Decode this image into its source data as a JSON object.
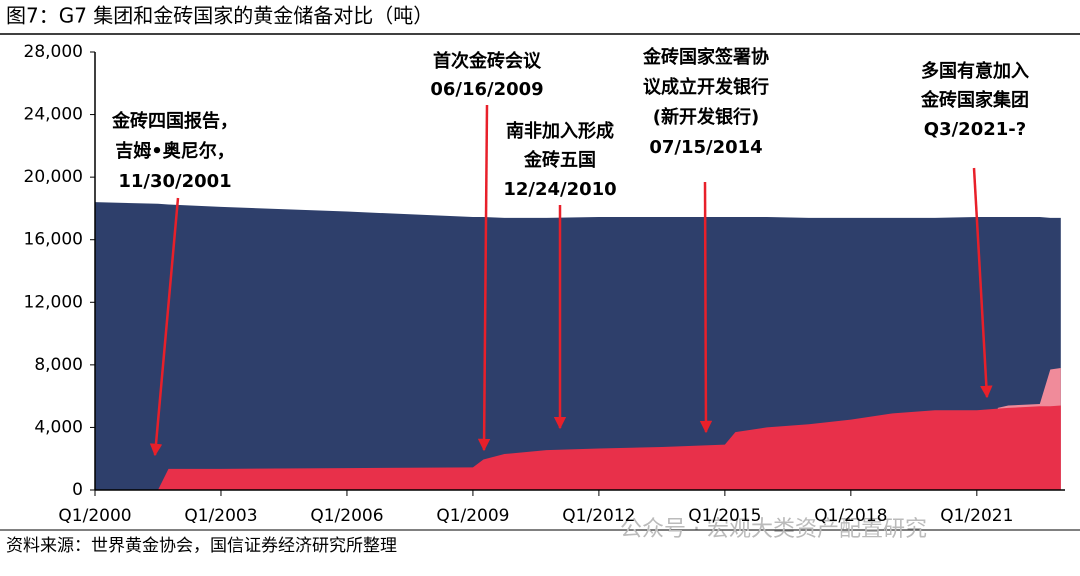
{
  "chart_data": {
    "type": "area",
    "title": "图7：G7 集团和金砖国家的黄金储备对比（吨）",
    "source": "资料来源：世界黄金协会，国信证券经济研究所整理",
    "watermark": "公众号 · 宏观大类资产配置研究",
    "x": [
      2000,
      2001.5,
      2001.75,
      2003,
      2006,
      2009,
      2009.25,
      2009.75,
      2010.75,
      2012,
      2013.5,
      2015,
      2015.25,
      2016,
      2017,
      2018,
      2019,
      2020,
      2021,
      2021.5,
      2021.75,
      2022.5,
      2022.75,
      2023
    ],
    "series": [
      {
        "color": "#2e3f6b",
        "values": [
          18400,
          18300,
          18250,
          18100,
          17800,
          17450,
          17450,
          17400,
          17400,
          17450,
          17450,
          17450,
          17450,
          17450,
          17400,
          17400,
          17400,
          17400,
          17450,
          17450,
          17450,
          17450,
          17400,
          17400
        ]
      },
      {
        "color": "#f08b9a",
        "values": [
          null,
          null,
          null,
          null,
          null,
          null,
          null,
          null,
          null,
          null,
          null,
          null,
          null,
          null,
          null,
          null,
          null,
          null,
          null,
          5250,
          5400,
          5500,
          7700,
          7800
        ]
      },
      {
        "color": "#e8304a",
        "values": [
          0,
          0,
          1350,
          1350,
          1400,
          1450,
          1950,
          2300,
          2550,
          2650,
          2750,
          2900,
          3700,
          4000,
          4200,
          4500,
          4900,
          5100,
          5100,
          5200,
          5250,
          5350,
          5350,
          5400
        ]
      }
    ],
    "xlim": [
      2000,
      2023.1
    ],
    "xticks": [
      {
        "value": 2000,
        "label": "Q1/2000"
      },
      {
        "value": 2003,
        "label": "Q1/2003"
      },
      {
        "value": 2006,
        "label": "Q1/2006"
      },
      {
        "value": 2009,
        "label": "Q1/2009"
      },
      {
        "value": 2012,
        "label": "Q1/2012"
      },
      {
        "value": 2015,
        "label": "Q1/2015"
      },
      {
        "value": 2018,
        "label": "Q1/2018"
      },
      {
        "value": 2021,
        "label": "Q1/2021"
      }
    ],
    "ylim": [
      0,
      28000
    ],
    "yticks": [
      0,
      {
        "value": 4000,
        "label": "4,000"
      },
      {
        "value": 8000,
        "label": "8,000"
      },
      {
        "value": 12000,
        "label": "12,000"
      },
      {
        "value": 16000,
        "label": "16,000"
      },
      {
        "value": 20000,
        "label": "20,000"
      },
      {
        "value": 24000,
        "label": "24,000"
      },
      {
        "value": 28000,
        "label": "28,000"
      }
    ],
    "annotations": [
      [
        "金砖四国报告，",
        "吉姆•奥尼尔，",
        "11/30/2001"
      ],
      [
        "首次金砖会议",
        "06/16/2009"
      ],
      [
        "南非加入形成",
        "金砖五国",
        "12/24/2010"
      ],
      [
        "金砖国家签署协",
        "议成立开发银行",
        "(新开发银行)",
        "07/15/2014"
      ],
      [
        "多国有意加入",
        "金砖国家集团",
        "Q3/2021-?"
      ]
    ]
  }
}
